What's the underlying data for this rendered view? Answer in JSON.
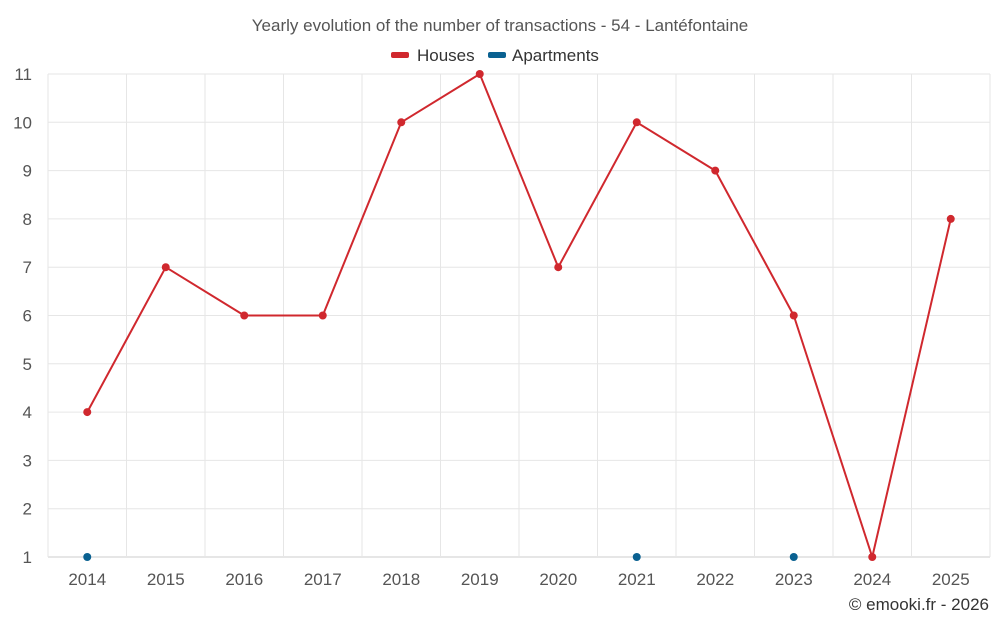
{
  "chart_data": {
    "type": "line",
    "title": "Yearly evolution of the number of transactions - 54 - Lantéfontaine",
    "categories": [
      "2014",
      "2015",
      "2016",
      "2017",
      "2018",
      "2019",
      "2020",
      "2021",
      "2022",
      "2023",
      "2024",
      "2025"
    ],
    "ylim": [
      1,
      11
    ],
    "yticks": [
      1,
      2,
      3,
      4,
      5,
      6,
      7,
      8,
      9,
      10,
      11
    ],
    "grid": true,
    "legend_position": "top-center",
    "series": [
      {
        "name": "Houses",
        "color": "#d0282e",
        "values": [
          4,
          7,
          6,
          6,
          10,
          11,
          7,
          10,
          9,
          6,
          1,
          8
        ]
      },
      {
        "name": "Apartments",
        "color": "#0a6191",
        "values": [
          1,
          null,
          null,
          null,
          null,
          null,
          null,
          1,
          null,
          1,
          null,
          null
        ]
      }
    ]
  },
  "credit": "© emooki.fr - 2026"
}
